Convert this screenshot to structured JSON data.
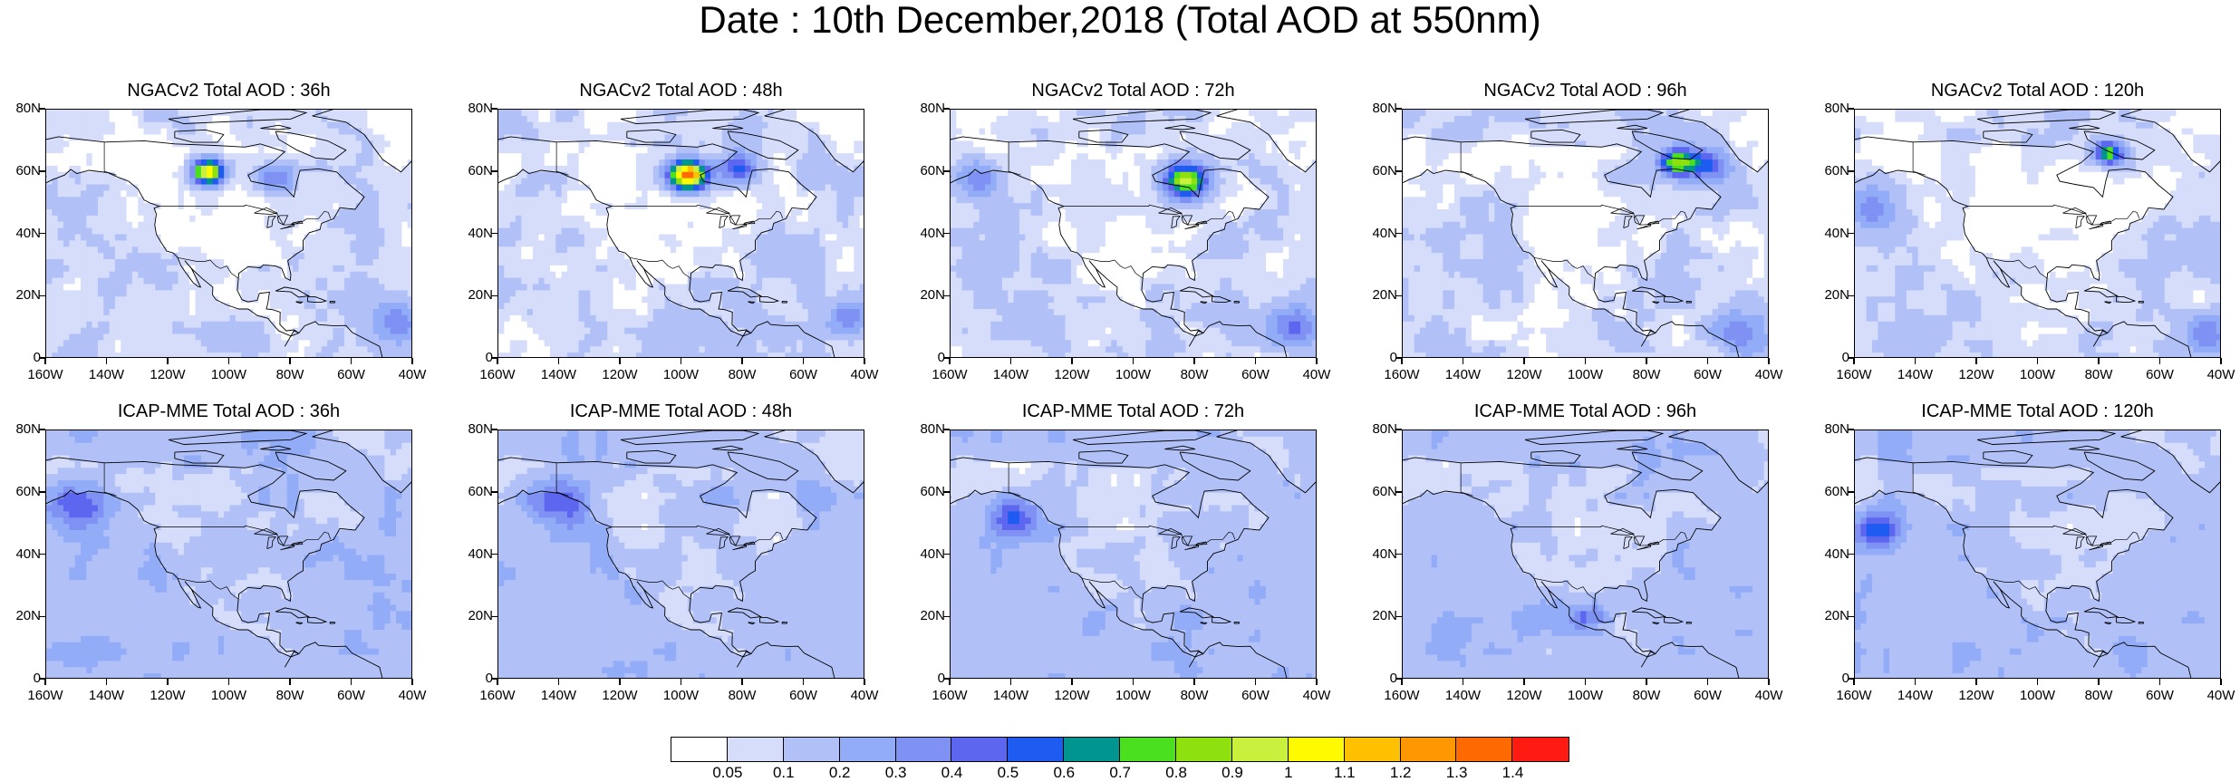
{
  "title": "Date : 10th December,2018 (Total AOD at 550nm)",
  "axes": {
    "lat_labels": [
      "80N",
      "60N",
      "40N",
      "20N",
      "0"
    ],
    "lon_labels": [
      "160W",
      "140W",
      "120W",
      "100W",
      "80W",
      "60W",
      "40W"
    ],
    "lat_range": [
      0,
      80
    ],
    "lon_range": [
      -160,
      -40
    ]
  },
  "rows": [
    {
      "model": "NGACv2",
      "panels": [
        {
          "title": "NGACv2 Total AOD : 36h",
          "plumes": [
            {
              "lon": -107,
              "lat": 60,
              "peak": 1.1,
              "spread": 5
            },
            {
              "lon": -85,
              "lat": 58,
              "peak": 0.3,
              "spread": 6
            },
            {
              "lon": -45,
              "lat": 12,
              "peak": 0.3,
              "spread": 8
            }
          ]
        },
        {
          "title": "NGACv2 Total AOD : 48h",
          "plumes": [
            {
              "lon": -98,
              "lat": 59,
              "peak": 1.3,
              "spread": 6
            },
            {
              "lon": -82,
              "lat": 61,
              "peak": 0.4,
              "spread": 6
            },
            {
              "lon": -45,
              "lat": 14,
              "peak": 0.3,
              "spread": 8
            }
          ]
        },
        {
          "title": "NGACv2 Total AOD : 72h",
          "plumes": [
            {
              "lon": -83,
              "lat": 57,
              "peak": 0.85,
              "spread": 7
            },
            {
              "lon": -152,
              "lat": 58,
              "peak": 0.3,
              "spread": 8
            },
            {
              "lon": -48,
              "lat": 10,
              "peak": 0.3,
              "spread": 9
            }
          ]
        },
        {
          "title": "NGACv2 Total AOD : 96h",
          "plumes": [
            {
              "lon": -70,
              "lat": 63,
              "peak": 0.75,
              "spread": 6
            },
            {
              "lon": -60,
              "lat": 62,
              "peak": 0.4,
              "spread": 7
            },
            {
              "lon": -48,
              "lat": 8,
              "peak": 0.3,
              "spread": 9
            }
          ]
        },
        {
          "title": "NGACv2 Total AOD : 120h",
          "plumes": [
            {
              "lon": -77,
              "lat": 66,
              "peak": 0.7,
              "spread": 5
            },
            {
              "lon": -155,
              "lat": 48,
              "peak": 0.3,
              "spread": 9
            },
            {
              "lon": -45,
              "lat": 8,
              "peak": 0.3,
              "spread": 8
            }
          ]
        }
      ]
    },
    {
      "model": "ICAP-MME",
      "panels": [
        {
          "title": "ICAP-MME Total AOD : 36h",
          "plumes": [
            {
              "lon": -150,
              "lat": 56,
              "peak": 0.3,
              "spread": 10
            }
          ]
        },
        {
          "title": "ICAP-MME Total AOD : 48h",
          "plumes": [
            {
              "lon": -140,
              "lat": 58,
              "peak": 0.3,
              "spread": 10
            }
          ]
        },
        {
          "title": "ICAP-MME Total AOD : 72h",
          "plumes": [
            {
              "lon": -140,
              "lat": 52,
              "peak": 0.35,
              "spread": 8
            }
          ]
        },
        {
          "title": "ICAP-MME Total AOD : 96h",
          "plumes": [
            {
              "lon": -100,
              "lat": 20,
              "peak": 0.3,
              "spread": 5
            }
          ]
        },
        {
          "title": "ICAP-MME Total AOD : 120h",
          "plumes": [
            {
              "lon": -152,
              "lat": 48,
              "peak": 0.45,
              "spread": 7
            }
          ]
        }
      ]
    }
  ],
  "colorbar": {
    "levels": [
      "0.05",
      "0.1",
      "0.2",
      "0.3",
      "0.4",
      "0.5",
      "0.6",
      "0.7",
      "0.8",
      "0.9",
      "1",
      "1.1",
      "1.2",
      "1.3",
      "1.4"
    ],
    "colors": [
      "#ffffff",
      "#d5ddfb",
      "#b1c1f8",
      "#92acf7",
      "#7f92f4",
      "#5d66ee",
      "#1e5bf0",
      "#00958f",
      "#4ae020",
      "#8ee00e",
      "#c8f03c",
      "#fffa00",
      "#ffc000",
      "#ff9800",
      "#ff6a00",
      "#ff1a12"
    ]
  },
  "colors": {
    "ocean_base": "#b8c5f8",
    "land_low": "#ffffff",
    "coast": "#000000"
  }
}
